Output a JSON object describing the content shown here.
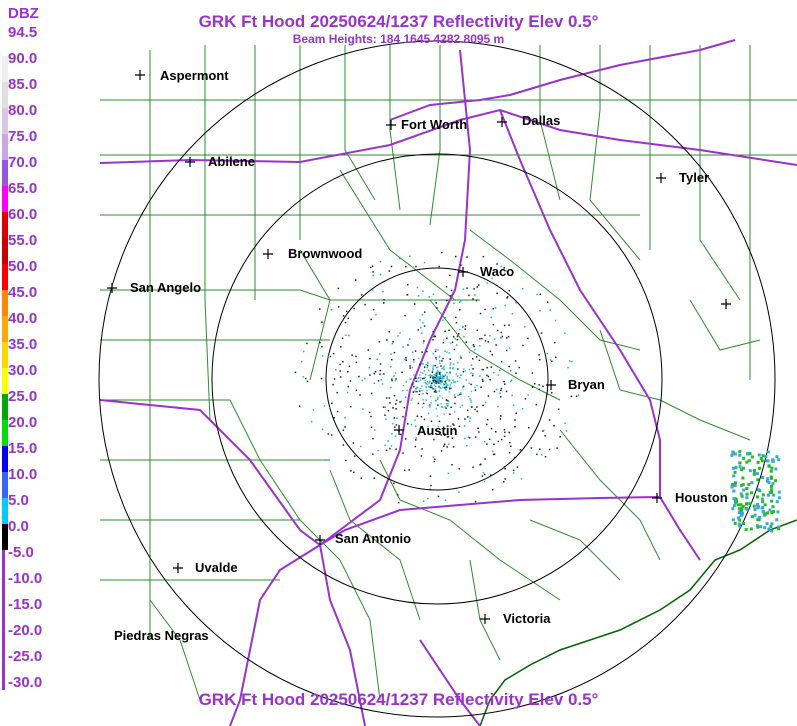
{
  "title": "GRK Ft Hood 20250624/1237 Reflectivity Elev 0.5°",
  "subtitle": "Beam Heights: 184 1645 4282 8095 m",
  "legend": {
    "unit": "DBZ",
    "levels": [
      "94.5",
      "90.0",
      "85.0",
      "80.0",
      "75.0",
      "70.0",
      "65.0",
      "60.0",
      "55.0",
      "50.0",
      "45.0",
      "40.0",
      "35.0",
      "30.0",
      "25.0",
      "20.0",
      "15.0",
      "10.0",
      "5.0",
      "0.0",
      "-5.0",
      "-10.0",
      "-15.0",
      "-20.0",
      "-25.0",
      "-30.0"
    ],
    "colors": [
      "#ffffff",
      "#f0f0f0",
      "#e0e0e0",
      "#d8c8e8",
      "#c8a8e0",
      "#9955dd",
      "#ff00ff",
      "#dd0000",
      "#c80000",
      "#ff0000",
      "#ff8800",
      "#ffaa00",
      "#ffd800",
      "#ffff00",
      "#00aa00",
      "#00dd00",
      "#0000ff",
      "#3366ff",
      "#00ccff",
      "#000000"
    ]
  },
  "cities": [
    {
      "name": "Aspermont"
    },
    {
      "name": "Fort Worth"
    },
    {
      "name": "Dallas"
    },
    {
      "name": "Abilene"
    },
    {
      "name": "Tyler"
    },
    {
      "name": "Brownwood"
    },
    {
      "name": "Waco"
    },
    {
      "name": "San Angelo"
    },
    {
      "name": "Bryan"
    },
    {
      "name": "Austin"
    },
    {
      "name": "Houston"
    },
    {
      "name": "San Antonio"
    },
    {
      "name": "Uvalde"
    },
    {
      "name": "Victoria"
    },
    {
      "name": "Piedras Negras"
    },
    {
      "name": ""
    }
  ],
  "colors": {
    "title": "#9933cc",
    "county_lines": "#2e8b2e",
    "highways": "#9933cc",
    "range_rings": "#000000",
    "coastline": "#006400"
  }
}
